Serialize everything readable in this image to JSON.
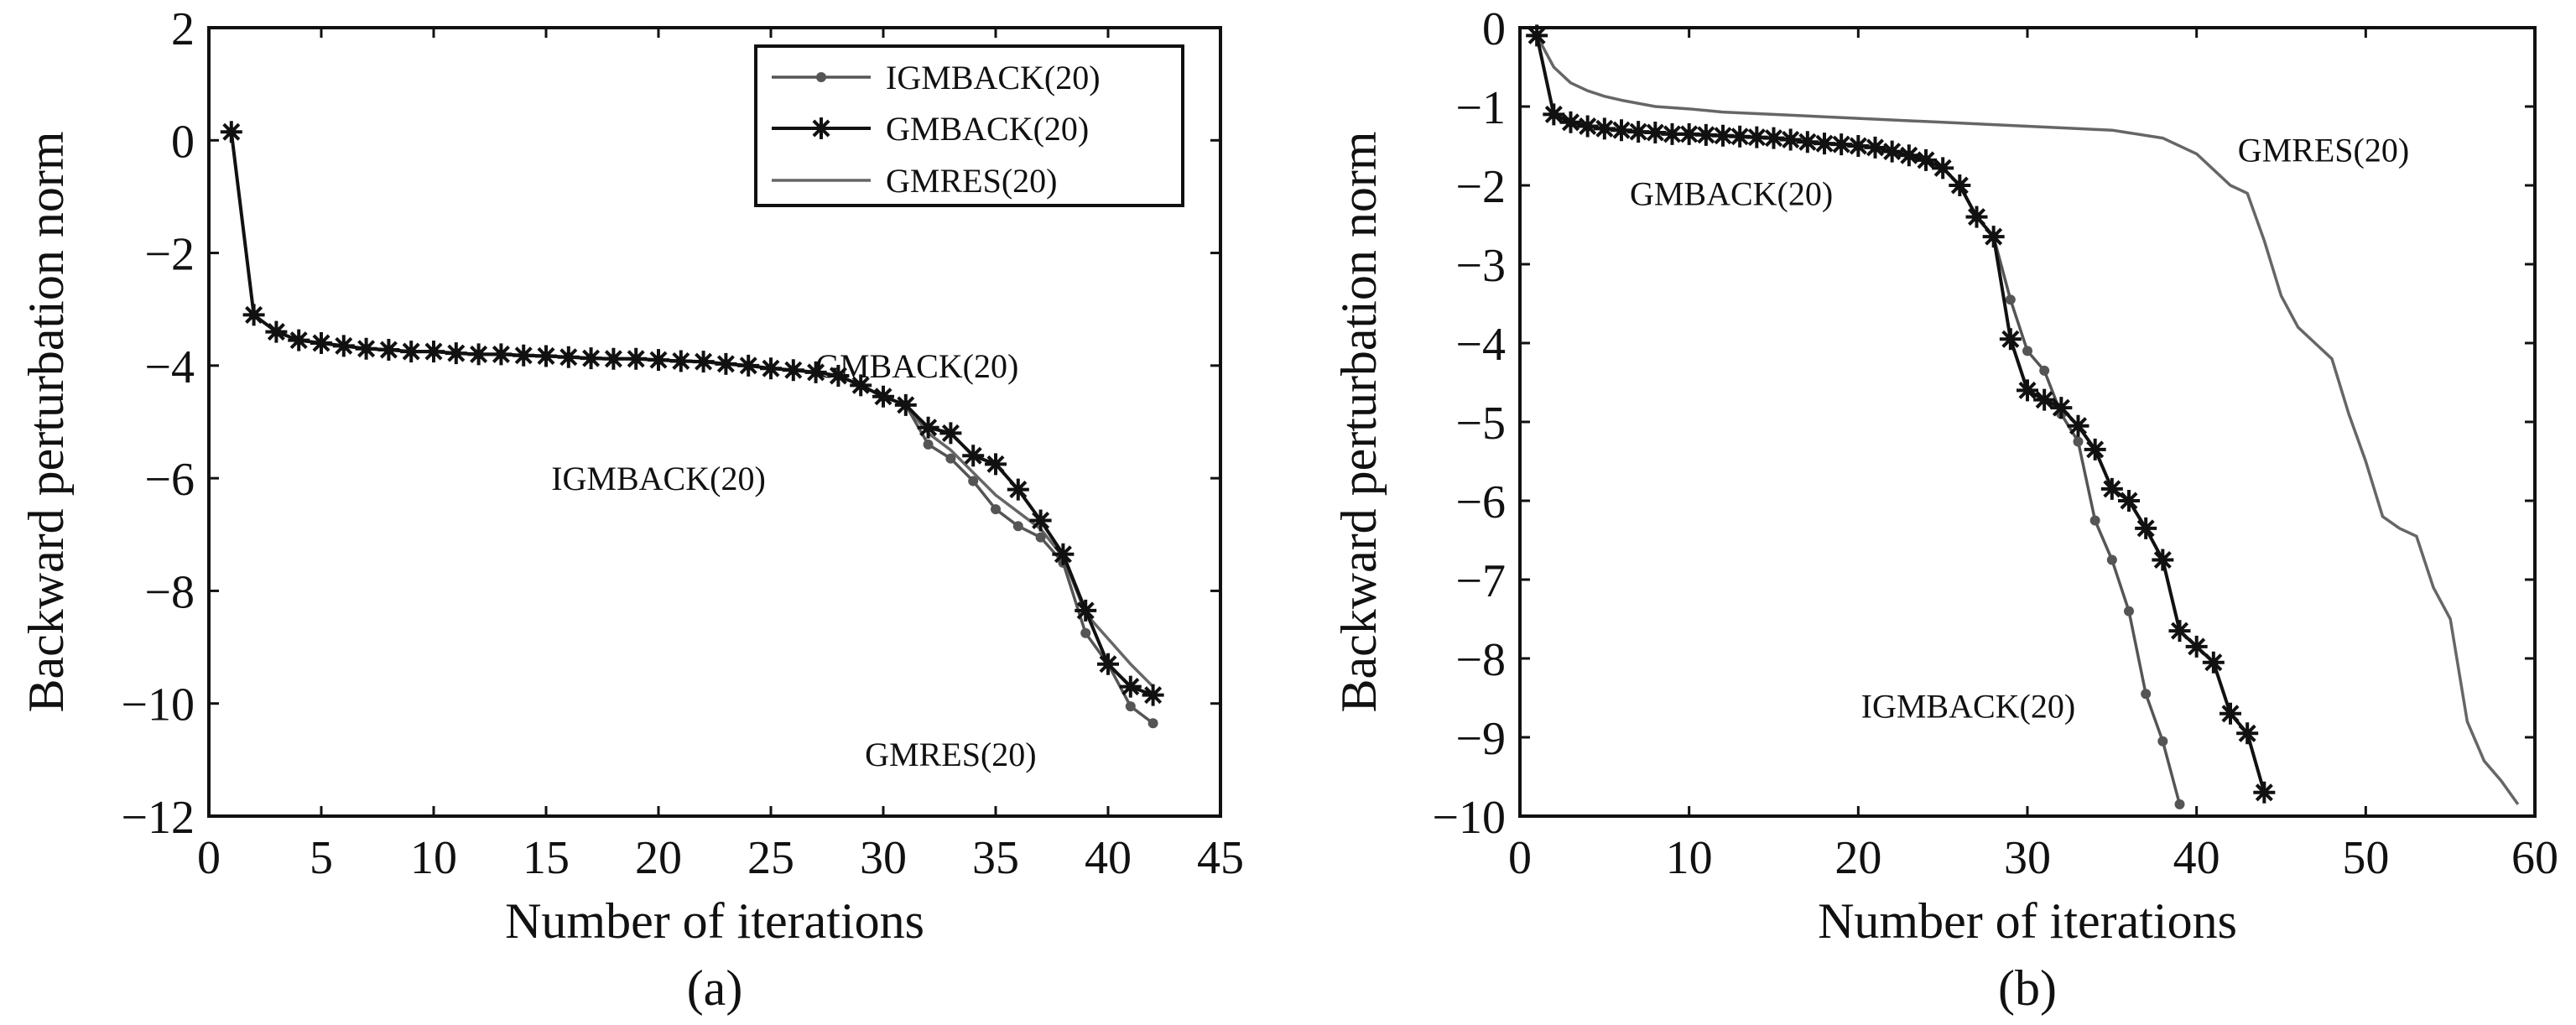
{
  "chart_data": [
    {
      "type": "line",
      "panel_label": "(a)",
      "xlabel": "Number of iterations",
      "ylabel": "Backward perturbation norm",
      "xlim": [
        0,
        45
      ],
      "ylim": [
        -12,
        2
      ],
      "xticks": [
        0,
        5,
        10,
        15,
        20,
        25,
        30,
        35,
        40,
        45
      ],
      "yticks": [
        2,
        0,
        -2,
        -4,
        -6,
        -8,
        -10,
        -12
      ],
      "grid": false,
      "legend": {
        "placement": "top-right",
        "entries": [
          "IGMBACK(20)",
          "GMBACK(20)",
          "GMRES(20)"
        ]
      },
      "annotations": [
        {
          "text": "GMBACK(20)",
          "x": 31.5,
          "y": -4
        },
        {
          "text": "IGMBACK(20)",
          "x": 20,
          "y": -6
        },
        {
          "text": "GMRES(20)",
          "x": 33,
          "y": -10.9
        }
      ],
      "series": [
        {
          "name": "IGMBACK(20)",
          "marker": "dot",
          "color": "#555555",
          "x": [
            1,
            2,
            3,
            4,
            5,
            6,
            7,
            8,
            9,
            10,
            11,
            12,
            13,
            14,
            15,
            16,
            17,
            18,
            19,
            20,
            21,
            22,
            23,
            24,
            25,
            26,
            27,
            28,
            29,
            30,
            31,
            32,
            33,
            34,
            35,
            36,
            37,
            38,
            39,
            40,
            41,
            42
          ],
          "y": [
            0.15,
            -3.1,
            -3.4,
            -3.55,
            -3.6,
            -3.65,
            -3.7,
            -3.72,
            -3.75,
            -3.75,
            -3.78,
            -3.8,
            -3.8,
            -3.82,
            -3.83,
            -3.85,
            -3.87,
            -3.88,
            -3.88,
            -3.9,
            -3.92,
            -3.93,
            -3.97,
            -4.0,
            -4.05,
            -4.08,
            -4.12,
            -4.18,
            -4.35,
            -4.55,
            -4.7,
            -5.4,
            -5.65,
            -6.05,
            -6.55,
            -6.85,
            -7.05,
            -7.5,
            -8.75,
            -9.3,
            -10.05,
            -10.35
          ]
        },
        {
          "name": "GMBACK(20)",
          "marker": "star",
          "color": "#111111",
          "x": [
            1,
            2,
            3,
            4,
            5,
            6,
            7,
            8,
            9,
            10,
            11,
            12,
            13,
            14,
            15,
            16,
            17,
            18,
            19,
            20,
            21,
            22,
            23,
            24,
            25,
            26,
            27,
            28,
            29,
            30,
            31,
            32,
            33,
            34,
            35,
            36,
            37,
            38,
            39,
            40,
            41,
            42
          ],
          "y": [
            0.15,
            -3.1,
            -3.4,
            -3.55,
            -3.6,
            -3.65,
            -3.7,
            -3.72,
            -3.75,
            -3.75,
            -3.78,
            -3.8,
            -3.8,
            -3.82,
            -3.83,
            -3.85,
            -3.87,
            -3.88,
            -3.88,
            -3.9,
            -3.92,
            -3.93,
            -3.97,
            -4.0,
            -4.05,
            -4.08,
            -4.12,
            -4.18,
            -4.35,
            -4.55,
            -4.7,
            -5.1,
            -5.2,
            -5.6,
            -5.75,
            -6.2,
            -6.75,
            -7.35,
            -8.35,
            -9.3,
            -9.7,
            -9.85
          ]
        },
        {
          "name": "GMRES(20)",
          "marker": "none",
          "color": "#666666",
          "x": [
            1,
            2,
            3,
            4,
            5,
            6,
            7,
            8,
            9,
            10,
            11,
            12,
            13,
            14,
            15,
            16,
            17,
            18,
            19,
            20,
            21,
            22,
            23,
            24,
            25,
            26,
            27,
            28,
            29,
            30,
            31,
            32,
            33,
            34,
            35,
            36,
            37,
            38,
            39,
            40,
            41,
            42
          ],
          "y": [
            0.15,
            -3.1,
            -3.4,
            -3.55,
            -3.6,
            -3.65,
            -3.7,
            -3.72,
            -3.75,
            -3.75,
            -3.78,
            -3.8,
            -3.8,
            -3.82,
            -3.83,
            -3.85,
            -3.87,
            -3.88,
            -3.88,
            -3.9,
            -3.92,
            -3.93,
            -3.97,
            -4.0,
            -4.05,
            -4.08,
            -4.12,
            -4.18,
            -4.35,
            -4.55,
            -4.7,
            -5.2,
            -5.5,
            -5.9,
            -6.3,
            -6.6,
            -6.9,
            -7.4,
            -8.4,
            -8.85,
            -9.3,
            -9.7
          ]
        }
      ]
    },
    {
      "type": "line",
      "panel_label": "(b)",
      "xlabel": "Number of iterations",
      "ylabel": "Backward perturbation norm",
      "xlim": [
        0,
        60
      ],
      "ylim": [
        -10,
        0
      ],
      "xticks": [
        0,
        10,
        20,
        30,
        40,
        50,
        60
      ],
      "yticks": [
        0,
        -1,
        -2,
        -3,
        -4,
        -5,
        -6,
        -7,
        -8,
        -9,
        -10
      ],
      "grid": false,
      "annotations": [
        {
          "text": "GMRES(20)",
          "x": 47.5,
          "y": -1.55
        },
        {
          "text": "GMBACK(20)",
          "x": 12.5,
          "y": -2.1
        },
        {
          "text": "IGMBACK(20)",
          "x": 26.5,
          "y": -8.6
        }
      ],
      "series": [
        {
          "name": "IGMBACK(20)",
          "marker": "dot",
          "color": "#555555",
          "x": [
            1,
            2,
            3,
            4,
            5,
            6,
            7,
            8,
            9,
            10,
            11,
            12,
            13,
            14,
            15,
            16,
            17,
            18,
            19,
            20,
            21,
            22,
            23,
            24,
            25,
            26,
            27,
            28,
            29,
            30,
            31,
            32,
            33,
            34,
            35,
            36,
            37,
            38,
            39
          ],
          "y": [
            -0.1,
            -1.1,
            -1.2,
            -1.25,
            -1.28,
            -1.3,
            -1.32,
            -1.33,
            -1.35,
            -1.35,
            -1.36,
            -1.37,
            -1.38,
            -1.39,
            -1.4,
            -1.42,
            -1.45,
            -1.47,
            -1.48,
            -1.5,
            -1.52,
            -1.57,
            -1.62,
            -1.68,
            -1.78,
            -2.0,
            -2.4,
            -2.65,
            -3.45,
            -4.1,
            -4.35,
            -4.9,
            -5.25,
            -6.25,
            -6.75,
            -7.4,
            -8.45,
            -9.05,
            -9.85
          ]
        },
        {
          "name": "GMBACK(20)",
          "marker": "star",
          "color": "#111111",
          "x": [
            1,
            2,
            3,
            4,
            5,
            6,
            7,
            8,
            9,
            10,
            11,
            12,
            13,
            14,
            15,
            16,
            17,
            18,
            19,
            20,
            21,
            22,
            23,
            24,
            25,
            26,
            27,
            28,
            29,
            30,
            31,
            32,
            33,
            34,
            35,
            36,
            37,
            38,
            39,
            40,
            41,
            42,
            43,
            44
          ],
          "y": [
            -0.1,
            -1.1,
            -1.2,
            -1.25,
            -1.28,
            -1.3,
            -1.32,
            -1.33,
            -1.35,
            -1.35,
            -1.36,
            -1.37,
            -1.38,
            -1.39,
            -1.4,
            -1.42,
            -1.45,
            -1.47,
            -1.48,
            -1.5,
            -1.52,
            -1.57,
            -1.62,
            -1.68,
            -1.78,
            -2.0,
            -2.4,
            -2.65,
            -3.95,
            -4.6,
            -4.72,
            -4.82,
            -5.05,
            -5.35,
            -5.85,
            -6.0,
            -6.35,
            -6.75,
            -7.65,
            -7.85,
            -8.05,
            -8.7,
            -8.95,
            -9.7
          ]
        },
        {
          "name": "GMRES(20)",
          "marker": "none",
          "color": "#666666",
          "x": [
            1,
            2,
            3,
            4,
            5,
            6,
            7,
            8,
            10,
            12,
            15,
            20,
            25,
            30,
            35,
            38,
            40,
            41,
            42,
            43,
            44,
            45,
            46,
            47,
            48,
            49,
            50,
            51,
            52,
            53,
            54,
            55,
            56,
            57,
            58,
            59
          ],
          "y": [
            -0.1,
            -0.5,
            -0.7,
            -0.8,
            -0.87,
            -0.92,
            -0.96,
            -1.0,
            -1.03,
            -1.07,
            -1.1,
            -1.15,
            -1.2,
            -1.25,
            -1.3,
            -1.4,
            -1.6,
            -1.8,
            -2.0,
            -2.1,
            -2.7,
            -3.4,
            -3.8,
            -4.0,
            -4.2,
            -4.9,
            -5.5,
            -6.2,
            -6.35,
            -6.45,
            -7.1,
            -7.5,
            -8.8,
            -9.3,
            -9.55,
            -9.85
          ]
        }
      ]
    }
  ]
}
